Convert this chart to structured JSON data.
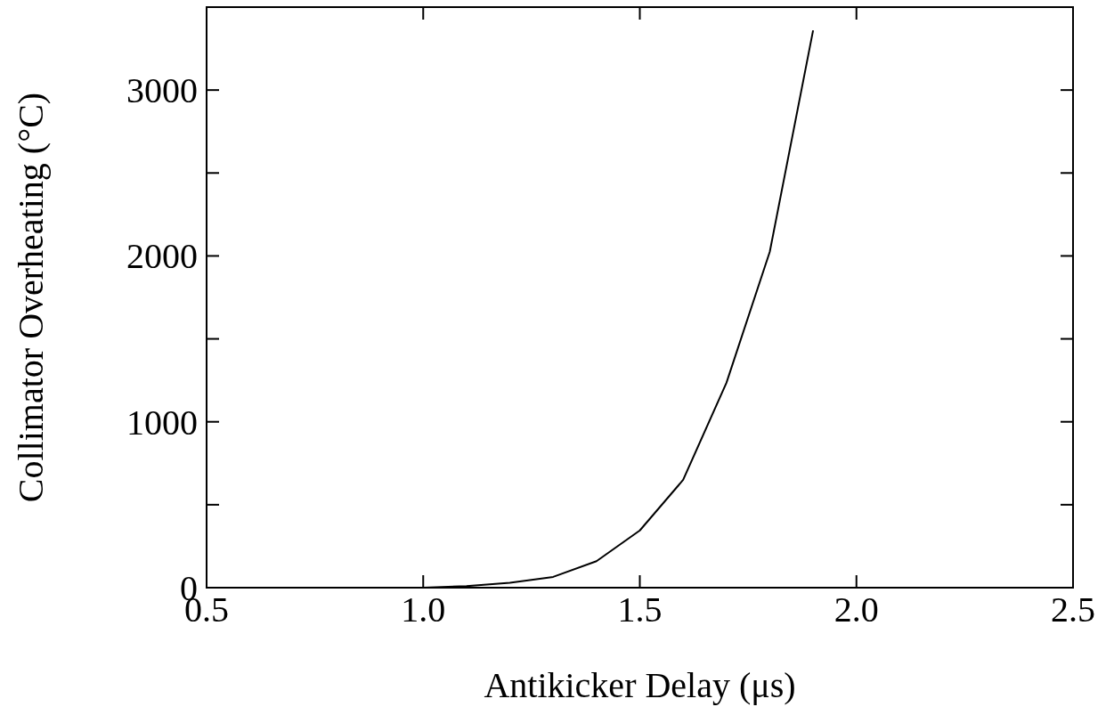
{
  "chart_data": {
    "type": "line",
    "xlabel": "Antikicker Delay (μs)",
    "ylabel": "Collimator Overheating (°C)",
    "x": [
      1.0,
      1.1,
      1.2,
      1.3,
      1.4,
      1.5,
      1.6,
      1.7,
      1.8,
      1.9
    ],
    "series": [
      {
        "color": "#000000",
        "values": [
          0,
          10,
          30,
          65,
          160,
          345,
          650,
          1235,
          2025,
          3360
        ]
      }
    ],
    "xlim": [
      0.5,
      2.5
    ],
    "xticks": [
      0.5,
      {
        "value": 1,
        "label": "1.0"
      },
      1.5,
      {
        "value": 2,
        "label": "2.0"
      },
      2.5
    ],
    "ylim": [
      0,
      3500
    ],
    "yticks": [
      0,
      {
        "value": 500,
        "label": null
      },
      1000,
      {
        "value": 1500,
        "label": null
      },
      2000,
      {
        "value": 2500,
        "label": null
      },
      3000,
      {
        "value": 3500,
        "label": null
      }
    ],
    "grid": false,
    "marker": "none",
    "line_style": "solid"
  }
}
